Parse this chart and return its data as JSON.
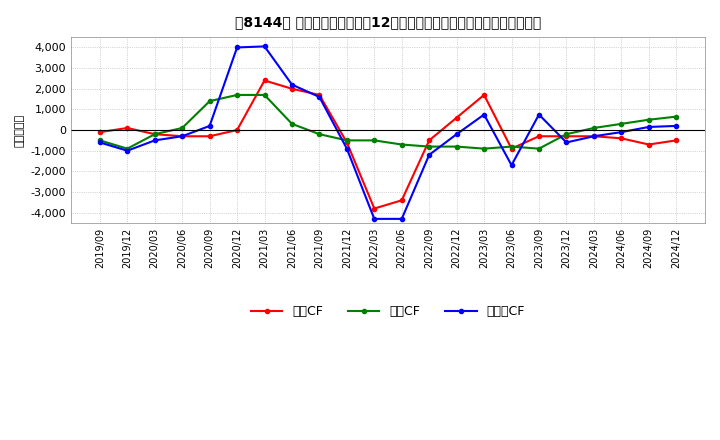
{
  "title": "【8144】 キャッシュフローの12か月移動合計の対前年同期増減額の推移",
  "ylabel": "（百万円）",
  "ylim": [
    -4500,
    4500
  ],
  "yticks": [
    -4000,
    -3000,
    -2000,
    -1000,
    0,
    1000,
    2000,
    3000,
    4000
  ],
  "dates": [
    "2019/09",
    "2019/12",
    "2020/03",
    "2020/06",
    "2020/09",
    "2020/12",
    "2021/03",
    "2021/06",
    "2021/09",
    "2021/12",
    "2022/03",
    "2022/06",
    "2022/09",
    "2022/12",
    "2023/03",
    "2023/06",
    "2023/09",
    "2023/12",
    "2024/03",
    "2024/06",
    "2024/09",
    "2024/12"
  ],
  "eigyo_cf": [
    -100,
    100,
    -200,
    -300,
    -300,
    0,
    2400,
    2000,
    1700,
    -600,
    -3800,
    -3400,
    -500,
    600,
    1700,
    -900,
    -300,
    -300,
    -300,
    -400,
    -700,
    -500
  ],
  "toshi_cf": [
    -500,
    -900,
    -200,
    100,
    1400,
    1700,
    1700,
    300,
    -200,
    -500,
    -500,
    -700,
    -800,
    -800,
    -900,
    -800,
    -900,
    -200,
    100,
    300,
    500,
    650
  ],
  "free_cf": [
    -600,
    -1000,
    -500,
    -300,
    200,
    4000,
    4050,
    2200,
    1600,
    -900,
    -4300,
    -4300,
    -1200,
    -200,
    750,
    -1700,
    750,
    -600,
    -300,
    -100,
    150,
    200
  ],
  "eigyo_color": "#ff0000",
  "toshi_color": "#008000",
  "free_color": "#0000ff",
  "background_color": "#ffffff",
  "grid_color": "#b0b0b0",
  "legend_labels": [
    "営業CF",
    "投資CF",
    "フリーCF"
  ]
}
